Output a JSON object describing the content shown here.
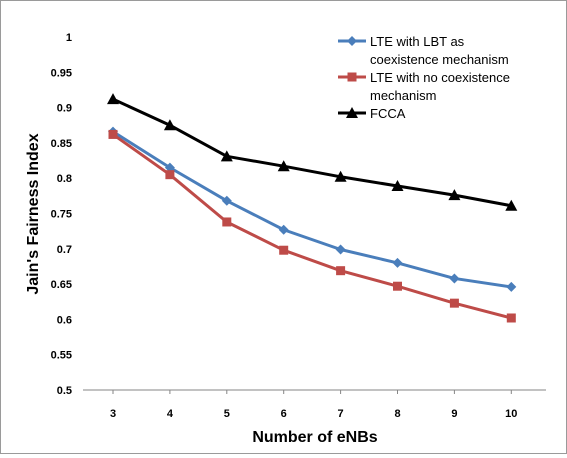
{
  "chart_data": {
    "type": "line",
    "title": "",
    "xlabel": "Number of eNBs",
    "ylabel": "Jain's Fairness Index",
    "x": [
      3,
      4,
      5,
      6,
      7,
      8,
      9,
      10
    ],
    "xticks": [
      "3",
      "4",
      "5",
      "6",
      "7",
      "8",
      "9",
      "10"
    ],
    "ylim": [
      0.5,
      1
    ],
    "yticks": [
      "0.5",
      "0.55",
      "0.6",
      "0.65",
      "0.7",
      "0.75",
      "0.8",
      "0.85",
      "0.9",
      "0.95",
      "1"
    ],
    "grid": false,
    "legend_position": "top-right",
    "series": [
      {
        "name": "LTE with LBT as coexistence mechanism",
        "legend_lines": [
          "LTE with LBT as",
          "coexistence mechanism"
        ],
        "color": "#4a7ebb",
        "marker": "diamond",
        "values": [
          0.866,
          0.815,
          0.768,
          0.727,
          0.699,
          0.68,
          0.658,
          0.646
        ]
      },
      {
        "name": "LTE with no coexistence mechanism",
        "legend_lines": [
          "LTE with no coexistence",
          "mechanism"
        ],
        "color": "#be4b48",
        "marker": "square",
        "values": [
          0.862,
          0.805,
          0.738,
          0.698,
          0.669,
          0.647,
          0.623,
          0.602
        ]
      },
      {
        "name": "FCCA",
        "legend_lines": [
          "FCCA"
        ],
        "color": "#000000",
        "marker": "triangle",
        "values": [
          0.912,
          0.875,
          0.831,
          0.817,
          0.802,
          0.789,
          0.776,
          0.761
        ]
      }
    ]
  }
}
